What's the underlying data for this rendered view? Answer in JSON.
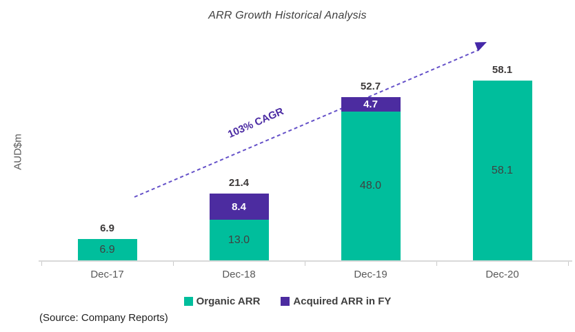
{
  "title": "ARR Growth Historical Analysis",
  "y_axis_label": "AUD$m",
  "source_note": "(Source: Company Reports)",
  "annotation": {
    "cagr_label": "103% CAGR"
  },
  "colors": {
    "organic": "#00be9c",
    "acquired": "#4c2ca0",
    "arrow_line": "#6450c8",
    "arrow_head": "#4528a8",
    "axis": "#d9d9d9"
  },
  "legend": [
    {
      "label": "Organic ARR",
      "color": "#00be9c"
    },
    {
      "label": "Acquired ARR in FY",
      "color": "#4c2ca0"
    }
  ],
  "chart_data": {
    "type": "bar",
    "stacked": true,
    "title": "ARR Growth Historical Analysis",
    "ylabel": "AUD$m",
    "xlabel": "",
    "grid": false,
    "legend_position": "bottom",
    "categories": [
      "Dec-17",
      "Dec-18",
      "Dec-19",
      "Dec-20"
    ],
    "series": [
      {
        "name": "Organic ARR",
        "color": "#00be9c",
        "values": [
          6.9,
          13.0,
          48.0,
          58.1
        ]
      },
      {
        "name": "Acquired ARR in FY",
        "color": "#4c2ca0",
        "values": [
          0,
          8.4,
          4.7,
          0
        ]
      }
    ],
    "totals": [
      6.9,
      21.4,
      52.7,
      58.1
    ],
    "organic_labels": [
      "6.9",
      "13.0",
      "48.0",
      "58.1"
    ],
    "acquired_labels": [
      "",
      "8.4",
      "4.7",
      ""
    ],
    "total_labels": [
      "6.9",
      "21.4",
      "52.7",
      "58.1"
    ],
    "annotations": [
      "103% CAGR"
    ],
    "ylim": [
      0,
      65
    ]
  }
}
